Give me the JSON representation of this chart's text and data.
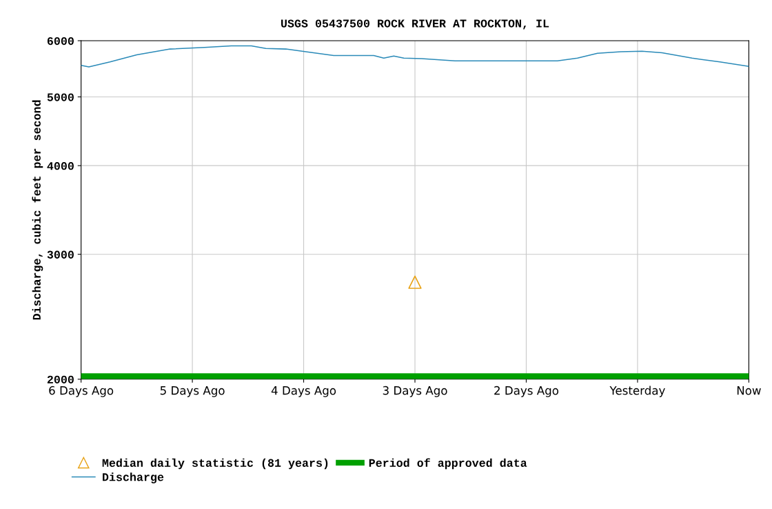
{
  "chart_data": {
    "type": "line",
    "title": "USGS 05437500 ROCK RIVER AT ROCKTON, IL",
    "ylabel": "Discharge, cubic feet per second",
    "log": "y",
    "ylim": [
      2000,
      6000
    ],
    "yticks": [
      2000,
      3000,
      4000,
      5000,
      6000
    ],
    "xlim": [
      -6,
      0
    ],
    "xticks": [
      {
        "value": -6,
        "label": "6 Days Ago"
      },
      {
        "value": -5,
        "label": "5 Days Ago"
      },
      {
        "value": -4,
        "label": "4 Days Ago"
      },
      {
        "value": -3,
        "label": "3 Days Ago"
      },
      {
        "value": -2,
        "label": "2 Days Ago"
      },
      {
        "value": -1,
        "label": "Yesterday"
      },
      {
        "value": 0,
        "label": "Now"
      }
    ],
    "grid": true,
    "legend": "bottom",
    "series": [
      {
        "name": "Median daily statistic (81 years)",
        "type": "scatter",
        "marker": "triangle",
        "color": "#e8a317",
        "x": [
          -3
        ],
        "values": [
          2740
        ]
      },
      {
        "name": "Period of approved data",
        "color": "#00a000",
        "x": [
          -6,
          0
        ],
        "values": [
          2020,
          2020
        ]
      },
      {
        "name": "Discharge",
        "color": "#2a8ab8",
        "x": [
          -6.0,
          -5.93,
          -5.74,
          -5.5,
          -5.2,
          -4.89,
          -4.65,
          -4.47,
          -4.34,
          -4.16,
          -3.98,
          -3.73,
          -3.37,
          -3.28,
          -3.19,
          -3.1,
          -2.94,
          -2.64,
          -1.72,
          -1.54,
          -1.36,
          -1.15,
          -0.96,
          -0.78,
          -0.51,
          -0.26,
          0.0
        ],
        "values": [
          5540,
          5510,
          5600,
          5730,
          5840,
          5870,
          5900,
          5900,
          5850,
          5840,
          5790,
          5720,
          5720,
          5670,
          5710,
          5670,
          5660,
          5620,
          5620,
          5670,
          5760,
          5790,
          5800,
          5770,
          5670,
          5600,
          5520
        ]
      }
    ]
  }
}
